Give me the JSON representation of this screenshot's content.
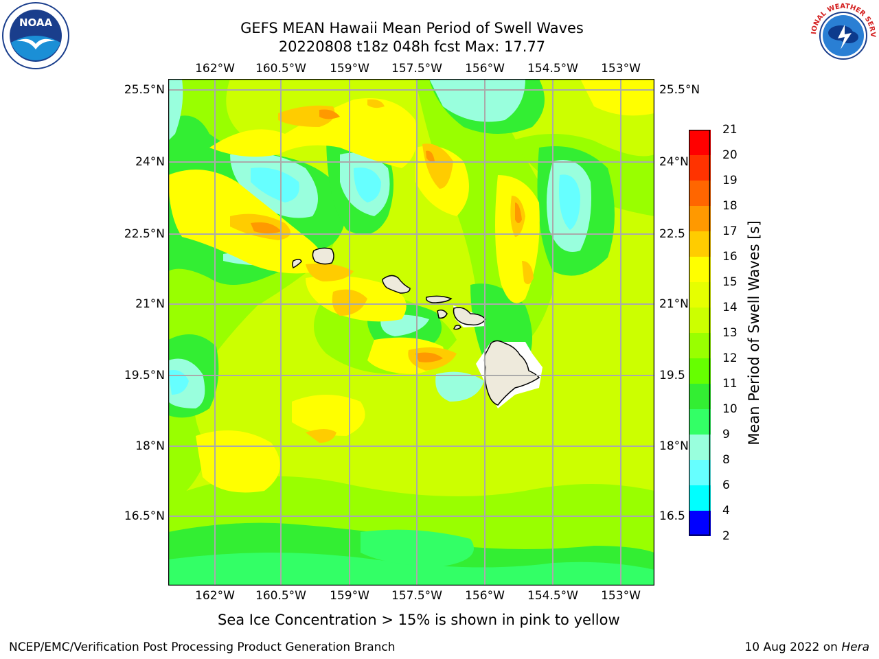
{
  "title": {
    "line1": "GEFS MEAN Hawaii Mean Period of Swell Waves",
    "line2": "20220808 t18z 048h fcst   Max: 17.77"
  },
  "logos": {
    "left": {
      "text": "NOAA",
      "icon": "noaa-logo-icon"
    },
    "right": {
      "text": "NATIONAL WEATHER SERVICE",
      "icon": "nws-logo-icon"
    }
  },
  "axes": {
    "lon_ticks": [
      "162°W",
      "160.5°W",
      "159°W",
      "157.5°W",
      "156°W",
      "154.5°W",
      "153°W"
    ],
    "lat_ticks_left": [
      "25.5°N",
      "24°N",
      "22.5°N",
      "21°N",
      "19.5°N",
      "18°N",
      "16.5°N"
    ],
    "lat_ticks_right": [
      "25.5°N",
      "24°N",
      "22.5",
      "21°N",
      "19.5",
      "18°N",
      "16.5"
    ]
  },
  "colorbar": {
    "label": "Mean Period of Swell Waves [s]",
    "ticks": [
      "21",
      "20",
      "19",
      "18",
      "17",
      "16",
      "15",
      "14",
      "13",
      "12",
      "11",
      "10",
      "9",
      "8",
      "6",
      "4",
      "2"
    ],
    "colors": [
      "#ff0000",
      "#ff3300",
      "#ff6600",
      "#ff9900",
      "#ffcc00",
      "#ffff00",
      "#e6ff00",
      "#ccff00",
      "#99ff00",
      "#66ff00",
      "#33ee33",
      "#33ff66",
      "#99ffdd",
      "#66ffff",
      "#00ffff",
      "#0088ff",
      "#0000ff"
    ]
  },
  "map_colors": {
    "ocean_base": "#ccff00",
    "land": "#eeeadc",
    "grid": "#aaaaaa"
  },
  "note": "Sea Ice Concentration > 15% is shown in pink to yellow",
  "footer": {
    "left": "NCEP/EMC/Verification Post Processing Product Generation Branch",
    "date": "10 Aug 2022 on ",
    "host": "Hera"
  }
}
